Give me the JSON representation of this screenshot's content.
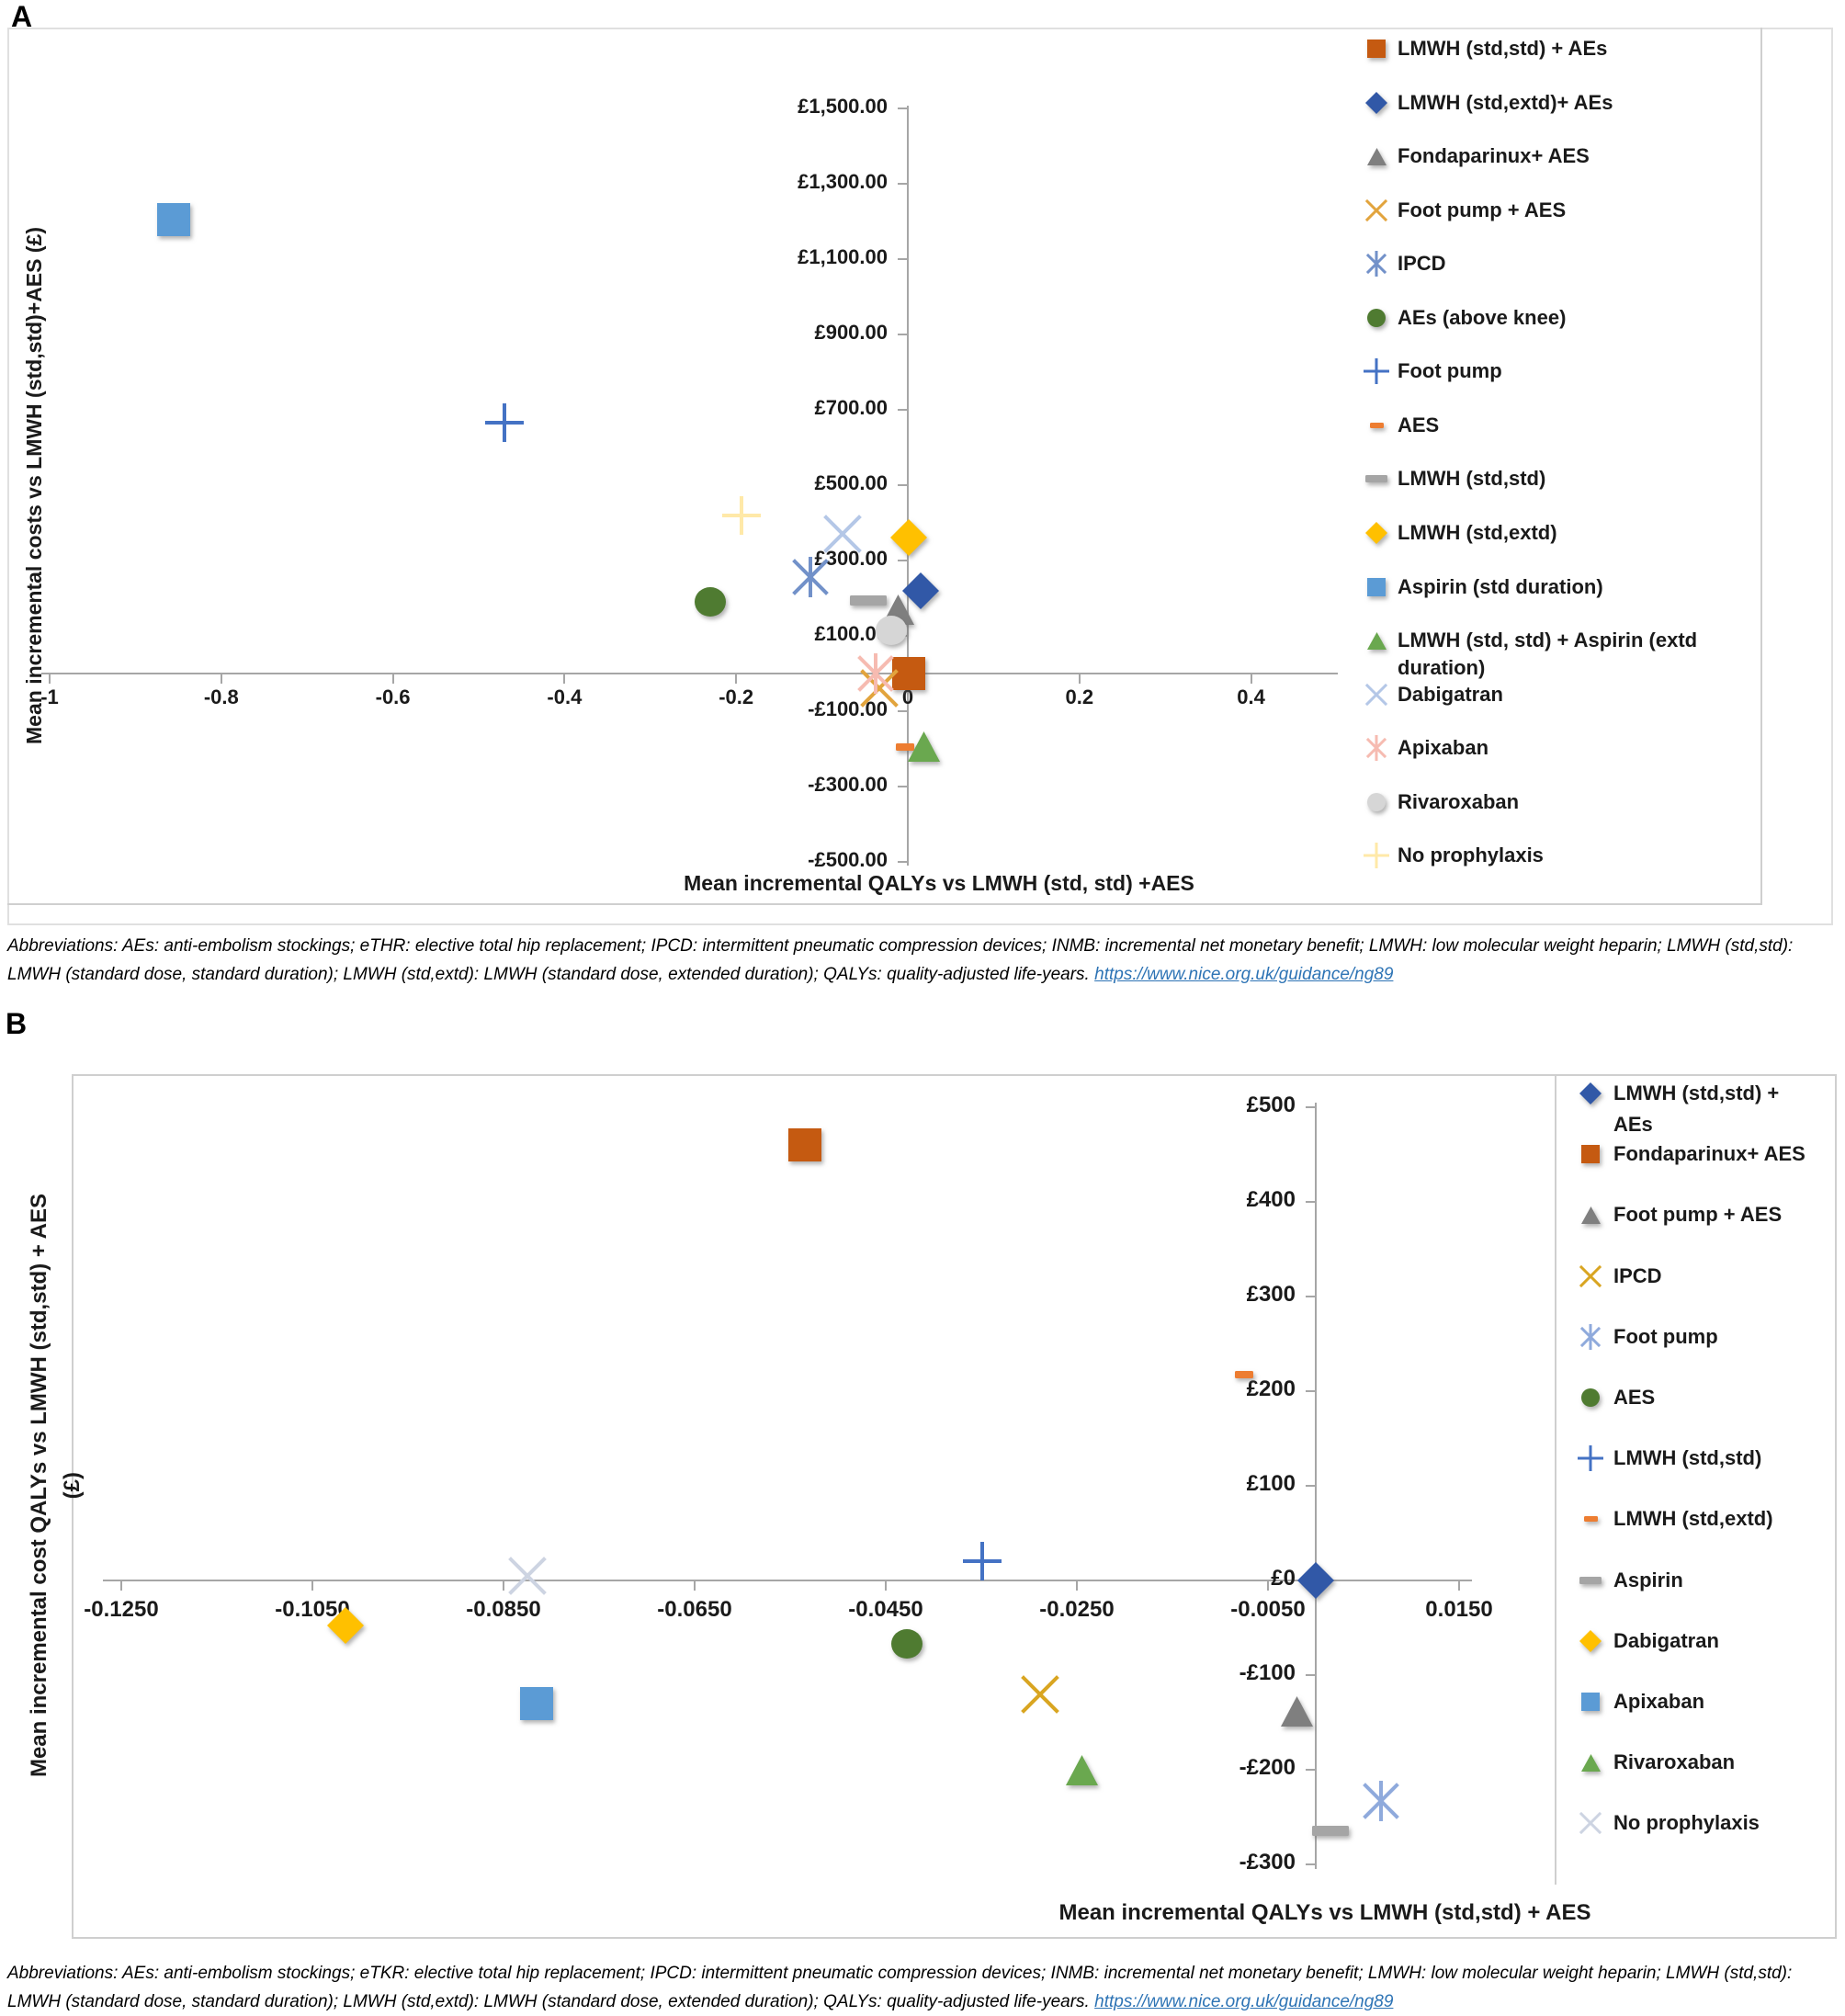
{
  "figure": {
    "panel_a": {
      "label": "A"
    },
    "panel_b": {
      "label": "B"
    },
    "footnote_a": {
      "text": "Abbreviations: AEs: anti-embolism stockings; eTHR: elective total hip replacement; IPCD: intermittent pneumatic compression devices; INMB: incremental net monetary benefit; LMWH: low molecular weight heparin; LMWH (std,std): LMWH (standard dose, standard duration); LMWH (std,extd): LMWH (standard dose, extended duration); QALYs: quality-adjusted life-years. ",
      "link": "https://www.nice.org.uk/guidance/ng89"
    },
    "footnote_b": {
      "text": "Abbreviations: AEs: anti-embolism stockings; eTKR: elective total hip replacement; IPCD: intermittent pneumatic compression devices; INMB: incremental net monetary benefit; LMWH: low molecular weight heparin; LMWH (std,std): LMWH (standard dose, standard duration); LMWH (std,extd): LMWH (standard dose, extended duration); QALYs: quality-adjusted life-years. ",
      "link": "https://www.nice.org.uk/guidance/ng89"
    }
  },
  "chart_data": [
    {
      "type": "scatter",
      "panel": "A",
      "title": "",
      "xlabel": "Mean incremental QALYs vs LMWH (std, std) +AES",
      "ylabel": "Mean incremental costs vs LMWH (std,std)+AES (£)",
      "xlim": [
        -1.05,
        0.5
      ],
      "ylim": [
        -500,
        1500
      ],
      "grid": false,
      "legend_position": "right",
      "x_ticks": [
        {
          "v": -1,
          "label": "-1"
        },
        {
          "v": -0.8,
          "label": "-0.8"
        },
        {
          "v": -0.6,
          "label": "-0.6"
        },
        {
          "v": -0.4,
          "label": "-0.4"
        },
        {
          "v": -0.2,
          "label": "-0.2"
        },
        {
          "v": 0,
          "label": "0"
        },
        {
          "v": 0.2,
          "label": "0.2"
        },
        {
          "v": 0.4,
          "label": "0.4"
        }
      ],
      "y_ticks": [
        {
          "v": 1500,
          "label": "£1,500.00"
        },
        {
          "v": 1300,
          "label": "£1,300.00"
        },
        {
          "v": 1100,
          "label": "£1,100.00"
        },
        {
          "v": 900,
          "label": "£900.00"
        },
        {
          "v": 700,
          "label": "£700.00"
        },
        {
          "v": 500,
          "label": "£500.00"
        },
        {
          "v": 300,
          "label": "£300.00"
        },
        {
          "v": 100,
          "label": "£100.00"
        },
        {
          "v": -100,
          "label": "-£100.00"
        },
        {
          "v": -300,
          "label": "-£300.00"
        },
        {
          "v": -500,
          "label": "-£500.00"
        }
      ],
      "series": [
        {
          "name": "LMWH (std,std) + AEs",
          "marker": "square",
          "color": "#C55A11",
          "x": 0.001,
          "y": 0
        },
        {
          "name": "LMWH (std,extd)+ AEs",
          "marker": "diamond",
          "color": "#3158A7",
          "x": 0.015,
          "y": 220
        },
        {
          "name": "Fondaparinux+ AES",
          "marker": "triangle",
          "color": "#7F7F7F",
          "x": -0.011,
          "y": 170
        },
        {
          "name": "Foot pump + AES",
          "marker": "x",
          "color": "#E2A43D",
          "x": -0.033,
          "y": -40
        },
        {
          "name": "IPCD",
          "marker": "asterisk",
          "color": "#7291C9",
          "x": -0.113,
          "y": 255
        },
        {
          "name": "AEs (above knee)",
          "marker": "circle",
          "color": "#4F7B31",
          "x": -0.23,
          "y": 190
        },
        {
          "name": "Foot pump",
          "marker": "plus",
          "color": "#4472C4",
          "x": -0.47,
          "y": 665
        },
        {
          "name": "AES",
          "marker": "dash-small",
          "color": "#ED7D31",
          "x": -0.003,
          "y": -195
        },
        {
          "name": "LMWH (std,std)",
          "marker": "dash",
          "color": "#A5A5A5",
          "x": -0.046,
          "y": 195
        },
        {
          "name": "LMWH (std,extd)",
          "marker": "diamond",
          "color": "#FFC000",
          "x": 0.001,
          "y": 360
        },
        {
          "name": "Aspirin (std duration)",
          "marker": "square",
          "color": "#5B9BD5",
          "x": -0.855,
          "y": 1205
        },
        {
          "name": "LMWH (std, std) + Aspirin (extd duration)",
          "marker": "triangle",
          "color": "#6AA84F",
          "x": 0.019,
          "y": -195,
          "legend_lines": [
            "LMWH (std, std) + Aspirin (extd",
            "duration)"
          ]
        },
        {
          "name": "Dabigatran",
          "marker": "x",
          "color": "#B4C7E7",
          "x": -0.076,
          "y": 370
        },
        {
          "name": "Apixaban",
          "marker": "asterisk",
          "color": "#F6BBB1",
          "x": -0.037,
          "y": 0
        },
        {
          "name": "Rivaroxaban",
          "marker": "circle",
          "color": "#D6D6D6",
          "x": -0.019,
          "y": 115
        },
        {
          "name": "No prophylaxis",
          "marker": "plus",
          "color": "#FFE9A8",
          "x": -0.194,
          "y": 420
        }
      ]
    },
    {
      "type": "scatter",
      "panel": "B",
      "title": "",
      "xlabel": "Mean incremental QALYs vs LMWH (std,std) + AES",
      "ylabel": "Mean incremental cost QALYs vs LMWH (std,std) + AES (£)",
      "ylabel_lines": [
        "Mean incremental cost QALYs vs LMWH (std,std) + AES",
        "(£)"
      ],
      "xlim": [
        -0.135,
        0.017
      ],
      "ylim": [
        -300,
        500
      ],
      "grid": false,
      "legend_position": "right",
      "x_ticks": [
        {
          "v": -0.125,
          "label": "-0.1250"
        },
        {
          "v": -0.105,
          "label": "-0.1050"
        },
        {
          "v": -0.085,
          "label": "-0.0850"
        },
        {
          "v": -0.065,
          "label": "-0.0650"
        },
        {
          "v": -0.045,
          "label": "-0.0450"
        },
        {
          "v": -0.025,
          "label": "-0.0250"
        },
        {
          "v": -0.005,
          "label": "-0.0050"
        },
        {
          "v": 0.015,
          "label": "0.0150"
        }
      ],
      "y_ticks": [
        {
          "v": 500,
          "label": "£500"
        },
        {
          "v": 400,
          "label": "£400"
        },
        {
          "v": 300,
          "label": "£300"
        },
        {
          "v": 200,
          "label": "£200"
        },
        {
          "v": 100,
          "label": "£100"
        },
        {
          "v": 0,
          "label": "£0"
        },
        {
          "v": -100,
          "label": "-£100"
        },
        {
          "v": -200,
          "label": "-£200"
        },
        {
          "v": -300,
          "label": "-£300"
        }
      ],
      "series": [
        {
          "name": "LMWH (std,std) + AEs",
          "marker": "diamond",
          "color": "#3158A7",
          "x": 0.0,
          "y": 0,
          "legend_lines": [
            "LMWH (std,std) +",
            "AEs"
          ]
        },
        {
          "name": "Fondaparinux+ AES",
          "marker": "square",
          "color": "#C55A11",
          "x": -0.0535,
          "y": 460
        },
        {
          "name": "Foot pump + AES",
          "marker": "triangle",
          "color": "#7F7F7F",
          "x": -0.002,
          "y": -138
        },
        {
          "name": "IPCD",
          "marker": "x",
          "color": "#D9A521",
          "x": -0.0288,
          "y": -120
        },
        {
          "name": "Foot pump",
          "marker": "asterisk",
          "color": "#8FAADC",
          "x": 0.0068,
          "y": -233
        },
        {
          "name": "AES",
          "marker": "circle",
          "color": "#4F7B31",
          "x": -0.0428,
          "y": -67
        },
        {
          "name": "LMWH (std,std)",
          "marker": "plus",
          "color": "#4472C4",
          "x": -0.0349,
          "y": 20
        },
        {
          "name": "LMWH (std,extd)",
          "marker": "dash-small",
          "color": "#ED7D31",
          "x": -0.0075,
          "y": 217
        },
        {
          "name": "Aspirin",
          "marker": "dash",
          "color": "#A5A5A5",
          "x": 0.0015,
          "y": -265
        },
        {
          "name": "Dabigatran",
          "marker": "diamond",
          "color": "#FFC000",
          "x": -0.1015,
          "y": -48
        },
        {
          "name": "Apixaban",
          "marker": "square",
          "color": "#5B9BD5",
          "x": -0.0815,
          "y": -130
        },
        {
          "name": "Rivaroxaban",
          "marker": "triangle",
          "color": "#6AA84F",
          "x": -0.0245,
          "y": -200
        },
        {
          "name": "No prophylaxis",
          "marker": "x",
          "color": "#CDD4E2",
          "x": -0.0825,
          "y": 5
        }
      ]
    }
  ]
}
